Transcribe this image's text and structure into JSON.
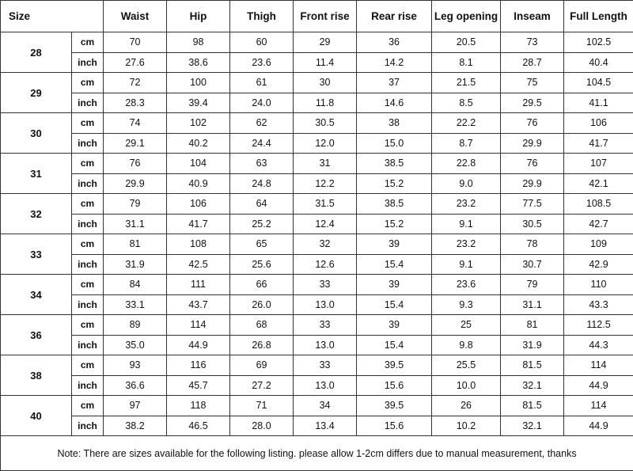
{
  "table": {
    "header": [
      "Size",
      "Waist",
      "Hip",
      "Thigh",
      "Front rise",
      "Rear rise",
      "Leg opening",
      "Inseam",
      "Full Length"
    ],
    "units": [
      "cm",
      "inch"
    ],
    "rows": [
      {
        "size": "28",
        "cm": [
          "70",
          "98",
          "60",
          "29",
          "36",
          "20.5",
          "73",
          "102.5"
        ],
        "inch": [
          "27.6",
          "38.6",
          "23.6",
          "11.4",
          "14.2",
          "8.1",
          "28.7",
          "40.4"
        ]
      },
      {
        "size": "29",
        "cm": [
          "72",
          "100",
          "61",
          "30",
          "37",
          "21.5",
          "75",
          "104.5"
        ],
        "inch": [
          "28.3",
          "39.4",
          "24.0",
          "11.8",
          "14.6",
          "8.5",
          "29.5",
          "41.1"
        ]
      },
      {
        "size": "30",
        "cm": [
          "74",
          "102",
          "62",
          "30.5",
          "38",
          "22.2",
          "76",
          "106"
        ],
        "inch": [
          "29.1",
          "40.2",
          "24.4",
          "12.0",
          "15.0",
          "8.7",
          "29.9",
          "41.7"
        ]
      },
      {
        "size": "31",
        "cm": [
          "76",
          "104",
          "63",
          "31",
          "38.5",
          "22.8",
          "76",
          "107"
        ],
        "inch": [
          "29.9",
          "40.9",
          "24.8",
          "12.2",
          "15.2",
          "9.0",
          "29.9",
          "42.1"
        ]
      },
      {
        "size": "32",
        "cm": [
          "79",
          "106",
          "64",
          "31.5",
          "38.5",
          "23.2",
          "77.5",
          "108.5"
        ],
        "inch": [
          "31.1",
          "41.7",
          "25.2",
          "12.4",
          "15.2",
          "9.1",
          "30.5",
          "42.7"
        ]
      },
      {
        "size": "33",
        "cm": [
          "81",
          "108",
          "65",
          "32",
          "39",
          "23.2",
          "78",
          "109"
        ],
        "inch": [
          "31.9",
          "42.5",
          "25.6",
          "12.6",
          "15.4",
          "9.1",
          "30.7",
          "42.9"
        ]
      },
      {
        "size": "34",
        "cm": [
          "84",
          "111",
          "66",
          "33",
          "39",
          "23.6",
          "79",
          "110"
        ],
        "inch": [
          "33.1",
          "43.7",
          "26.0",
          "13.0",
          "15.4",
          "9.3",
          "31.1",
          "43.3"
        ]
      },
      {
        "size": "36",
        "cm": [
          "89",
          "114",
          "68",
          "33",
          "39",
          "25",
          "81",
          "112.5"
        ],
        "inch": [
          "35.0",
          "44.9",
          "26.8",
          "13.0",
          "15.4",
          "9.8",
          "31.9",
          "44.3"
        ]
      },
      {
        "size": "38",
        "cm": [
          "93",
          "116",
          "69",
          "33",
          "39.5",
          "25.5",
          "81.5",
          "114"
        ],
        "inch": [
          "36.6",
          "45.7",
          "27.2",
          "13.0",
          "15.6",
          "10.0",
          "32.1",
          "44.9"
        ]
      },
      {
        "size": "40",
        "cm": [
          "97",
          "118",
          "71",
          "34",
          "39.5",
          "26",
          "81.5",
          "114"
        ],
        "inch": [
          "38.2",
          "46.5",
          "28.0",
          "13.4",
          "15.6",
          "10.2",
          "32.1",
          "44.9"
        ]
      }
    ],
    "note": "Note: There are sizes available for the following listing. please allow 1-2cm differs due to manual measurement, thanks"
  }
}
